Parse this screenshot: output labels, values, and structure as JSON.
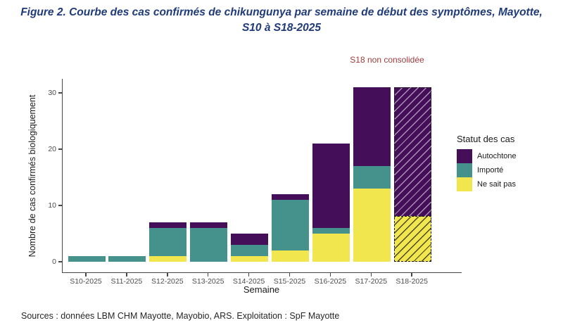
{
  "title": {
    "line1": "Figure 2. Courbe des cas confirmés de chikungunya par semaine de début des symptômes, Mayotte,",
    "line2": "S10 à S18-2025"
  },
  "annotation": {
    "text": "S18 non consolidée",
    "color": "#9E3B3B"
  },
  "colors": {
    "title": "#1F3B7A",
    "autochtone": "#440E58",
    "importe": "#45918C",
    "ne_sait_pas": "#F2E64E",
    "axis": "#474747"
  },
  "chart_data": {
    "type": "bar",
    "stacked": true,
    "categories": [
      "S10-2025",
      "S11-2025",
      "S12-2025",
      "S13-2025",
      "S14-2025",
      "S15-2025",
      "S16-2025",
      "S17-2025",
      "S18-2025"
    ],
    "series": [
      {
        "name": "Ne sait pas",
        "key": "nsp",
        "color": "#F2E64E",
        "values": [
          0,
          0,
          1,
          0,
          1,
          2,
          5,
          13,
          8
        ]
      },
      {
        "name": "Importé",
        "key": "importe",
        "color": "#45918C",
        "values": [
          1,
          1,
          5,
          6,
          2,
          9,
          1,
          4,
          0
        ]
      },
      {
        "name": "Autochtone",
        "key": "autochtone",
        "color": "#440E58",
        "values": [
          0,
          0,
          1,
          1,
          2,
          1,
          15,
          14,
          23
        ]
      }
    ],
    "totals": [
      1,
      1,
      7,
      7,
      5,
      12,
      21,
      31,
      31
    ],
    "hatched_categories": [
      "S18-2025"
    ],
    "xlabel": "Semaine",
    "ylabel": "Nombre de cas confirmés biologiquement",
    "ylim": [
      0,
      32.5
    ],
    "yticks": [
      0,
      10,
      20,
      30
    ],
    "grid": false,
    "legend_position": "right"
  },
  "legend": {
    "title": "Statut des cas",
    "items": [
      {
        "label": "Autochtone",
        "key": "autochtone",
        "color": "#440E58"
      },
      {
        "label": "Importé",
        "key": "importe",
        "color": "#45918C"
      },
      {
        "label": "Ne sait pas",
        "key": "nsp",
        "color": "#F2E64E"
      }
    ]
  },
  "footer": "Sources : données LBM CHM Mayotte, Mayobio, ARS. Exploitation :  SpF Mayotte"
}
